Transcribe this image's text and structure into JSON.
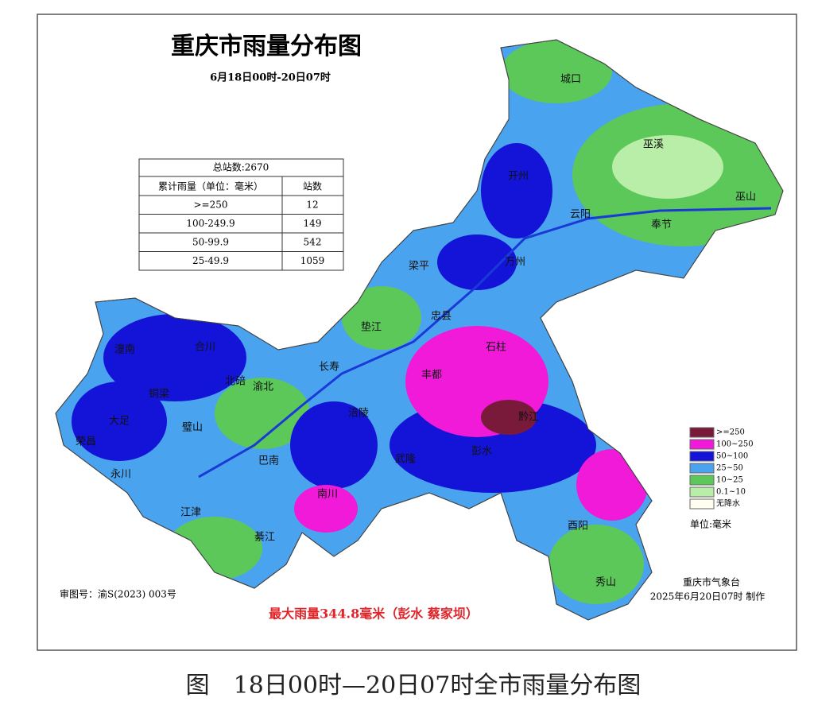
{
  "header": {
    "title": "重庆市雨量分布图",
    "subtitle": "6月18日00时-20日07时"
  },
  "table": {
    "title": "总站数:2670",
    "columns": [
      "累计雨量（单位：毫米）",
      "站数"
    ],
    "rows": [
      [
        ">=250",
        "12"
      ],
      [
        "100-249.9",
        "149"
      ],
      [
        "50-99.9",
        "542"
      ],
      [
        "25-49.9",
        "1059"
      ]
    ]
  },
  "legend": {
    "items": [
      {
        "label": ">=250",
        "color": "#7a1a3a"
      },
      {
        "label": "100~250",
        "color": "#f01ad8"
      },
      {
        "label": "50~100",
        "color": "#1414d8"
      },
      {
        "label": "25~50",
        "color": "#4aa3ee"
      },
      {
        "label": "10~25",
        "color": "#5cc85a"
      },
      {
        "label": "0.1~10",
        "color": "#b8eea8"
      },
      {
        "label": "无降水",
        "color": "#fffef0"
      }
    ],
    "unit": "单位:毫米"
  },
  "places": [
    "城口",
    "巫溪",
    "巫山",
    "奉节",
    "云阳",
    "开州",
    "万州",
    "梁平",
    "忠县",
    "垫江",
    "石柱",
    "丰都",
    "长寿",
    "涪陵",
    "武隆",
    "彭水",
    "黔江",
    "酉阳",
    "秀山",
    "南川",
    "綦江",
    "江津",
    "巴南",
    "渝北",
    "北碚",
    "合川",
    "潼南",
    "铜梁",
    "大足",
    "璧山",
    "荣昌",
    "永川"
  ],
  "notes": {
    "map_number": "审图号：渝S(2023) 003号",
    "max_rain": "最大雨量344.8毫米（彭水 蔡家坝）",
    "issuer": "重庆市气象台",
    "issued": "2025年6月20日07时 制作"
  },
  "caption": "图　18日00时—20日07时全市雨量分布图"
}
